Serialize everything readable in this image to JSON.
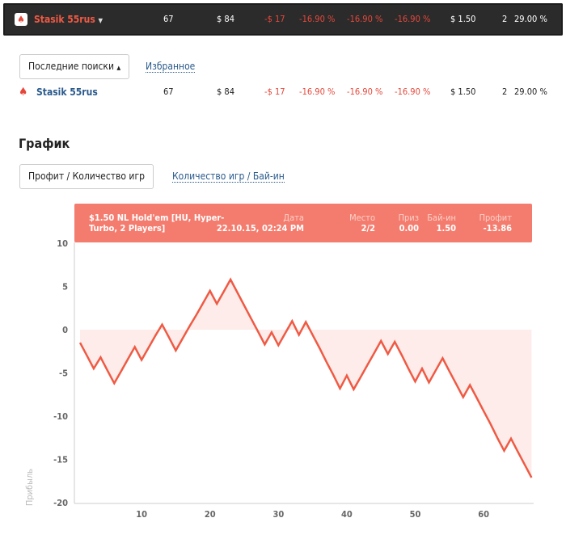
{
  "top_bar": {
    "player": "Stasik 55rus",
    "games": "67",
    "buyin_total": "$ 84",
    "profit": "-$ 17",
    "roi1": "-16.90 %",
    "roi2": "-16.90 %",
    "roi3": "-16.90 %",
    "avg_buyin": "$ 1.50",
    "count": "2",
    "itm": "29.00 %"
  },
  "search": {
    "recent_label": "Последние поиски",
    "favorites_label": "Избранное"
  },
  "result_row": {
    "player": "Stasik 55rus",
    "games": "67",
    "buyin_total": "$ 84",
    "profit": "-$ 17",
    "roi1": "-16.90 %",
    "roi2": "-16.90 %",
    "roi3": "-16.90 %",
    "avg_buyin": "$ 1.50",
    "count": "2",
    "itm": "29.00 %"
  },
  "graph": {
    "title": "График",
    "tab_active": "Профит / Количество игр",
    "tab_other": "Количество игр / Бай-ин"
  },
  "tooltip": {
    "game": "$1.50 NL Hold'em [HU, Hyper-Turbo, 2 Players]",
    "game_line1": "$1.50 NL Hold'em [HU, Hyper-",
    "game_line2": "Turbo, 2 Players]",
    "date_label": "Дата",
    "date": "22.10.15, 02:24 PM",
    "place_label": "Место",
    "place": "2/2",
    "prize_label": "Приз",
    "prize": "0.00",
    "buyin_label": "Бай-ин",
    "buyin": "1.50",
    "profit_label": "Профит",
    "profit": "-13.86"
  },
  "colors": {
    "line": "#ef5a44",
    "fill": "#fdecea",
    "tooltip": "#f47c6e",
    "dark_bar": "#2b2b2b"
  },
  "chart_data": {
    "type": "area",
    "ylabel": "Прибыль",
    "ylim": [
      -20,
      10
    ],
    "xlim": [
      0,
      67
    ],
    "yticks": [
      "10",
      "5",
      "0",
      "-5",
      "-10",
      "-15",
      "-20"
    ],
    "xticks": [
      "10",
      "20",
      "30",
      "40",
      "50",
      "60"
    ],
    "x": [
      1,
      2,
      3,
      4,
      5,
      6,
      7,
      8,
      9,
      10,
      11,
      12,
      13,
      14,
      15,
      16,
      17,
      18,
      19,
      20,
      21,
      22,
      23,
      24,
      25,
      26,
      27,
      28,
      29,
      30,
      31,
      32,
      33,
      34,
      35,
      36,
      37,
      38,
      39,
      40,
      41,
      42,
      43,
      44,
      45,
      46,
      47,
      48,
      49,
      50,
      51,
      52,
      53,
      54,
      55,
      56,
      57,
      58,
      59,
      60,
      61,
      62,
      63,
      64,
      65,
      66,
      67
    ],
    "values": [
      -1.5,
      -3.0,
      -4.5,
      -3.2,
      -4.7,
      -6.2,
      -4.8,
      -3.4,
      -2.0,
      -3.5,
      -2.1,
      -0.7,
      0.6,
      -0.9,
      -2.4,
      -1.0,
      0.4,
      1.7,
      3.1,
      4.5,
      3.0,
      4.4,
      5.8,
      4.3,
      2.8,
      1.3,
      -0.2,
      -1.7,
      -0.3,
      -1.8,
      -0.4,
      1.0,
      -0.6,
      0.9,
      -0.6,
      -2.1,
      -3.7,
      -5.2,
      -6.8,
      -5.3,
      -6.9,
      -5.5,
      -4.1,
      -2.7,
      -1.3,
      -2.8,
      -1.4,
      -2.9,
      -4.5,
      -6.0,
      -4.5,
      -6.1,
      -4.7,
      -3.3,
      -4.8,
      -6.3,
      -7.8,
      -6.4,
      -7.9,
      -9.4,
      -10.9,
      -12.5,
      -14.0,
      -12.6,
      -14.1,
      -15.6,
      -17.1
    ],
    "grid": false,
    "legend": "none"
  }
}
